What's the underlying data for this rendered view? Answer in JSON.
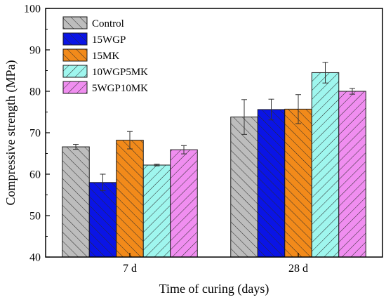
{
  "chart_data": {
    "type": "bar",
    "categories": [
      "7 d",
      "28 d"
    ],
    "series": [
      {
        "name": "Control",
        "values": [
          66.6,
          73.8
        ],
        "errors": [
          0.6,
          4.2
        ],
        "color": "#bdbdbd",
        "hatch": "diag-right"
      },
      {
        "name": "15WGP",
        "values": [
          58.0,
          75.6
        ],
        "errors": [
          2.0,
          2.5
        ],
        "color": "#0a14e6",
        "hatch": "diag-right"
      },
      {
        "name": "15MK",
        "values": [
          68.2,
          75.7
        ],
        "errors": [
          2.1,
          3.5
        ],
        "color": "#f28a1a",
        "hatch": "diag-right"
      },
      {
        "name": "10WGP5MK",
        "values": [
          62.2,
          84.5
        ],
        "errors": [
          0.2,
          2.5
        ],
        "color": "#9ff6ee",
        "hatch": "diag-left"
      },
      {
        "name": "5WGP10MK",
        "values": [
          65.9,
          80.0
        ],
        "errors": [
          1.0,
          0.7
        ],
        "color": "#f08ef0",
        "hatch": "diag-left"
      }
    ],
    "title": "",
    "xlabel": "Time of curing (days)",
    "ylabel": "Compressive strength (MPa)",
    "ylim": [
      40,
      100
    ],
    "yticks": [
      40,
      50,
      60,
      70,
      80,
      90,
      100
    ],
    "grid": false,
    "legend_position": "top-left"
  }
}
